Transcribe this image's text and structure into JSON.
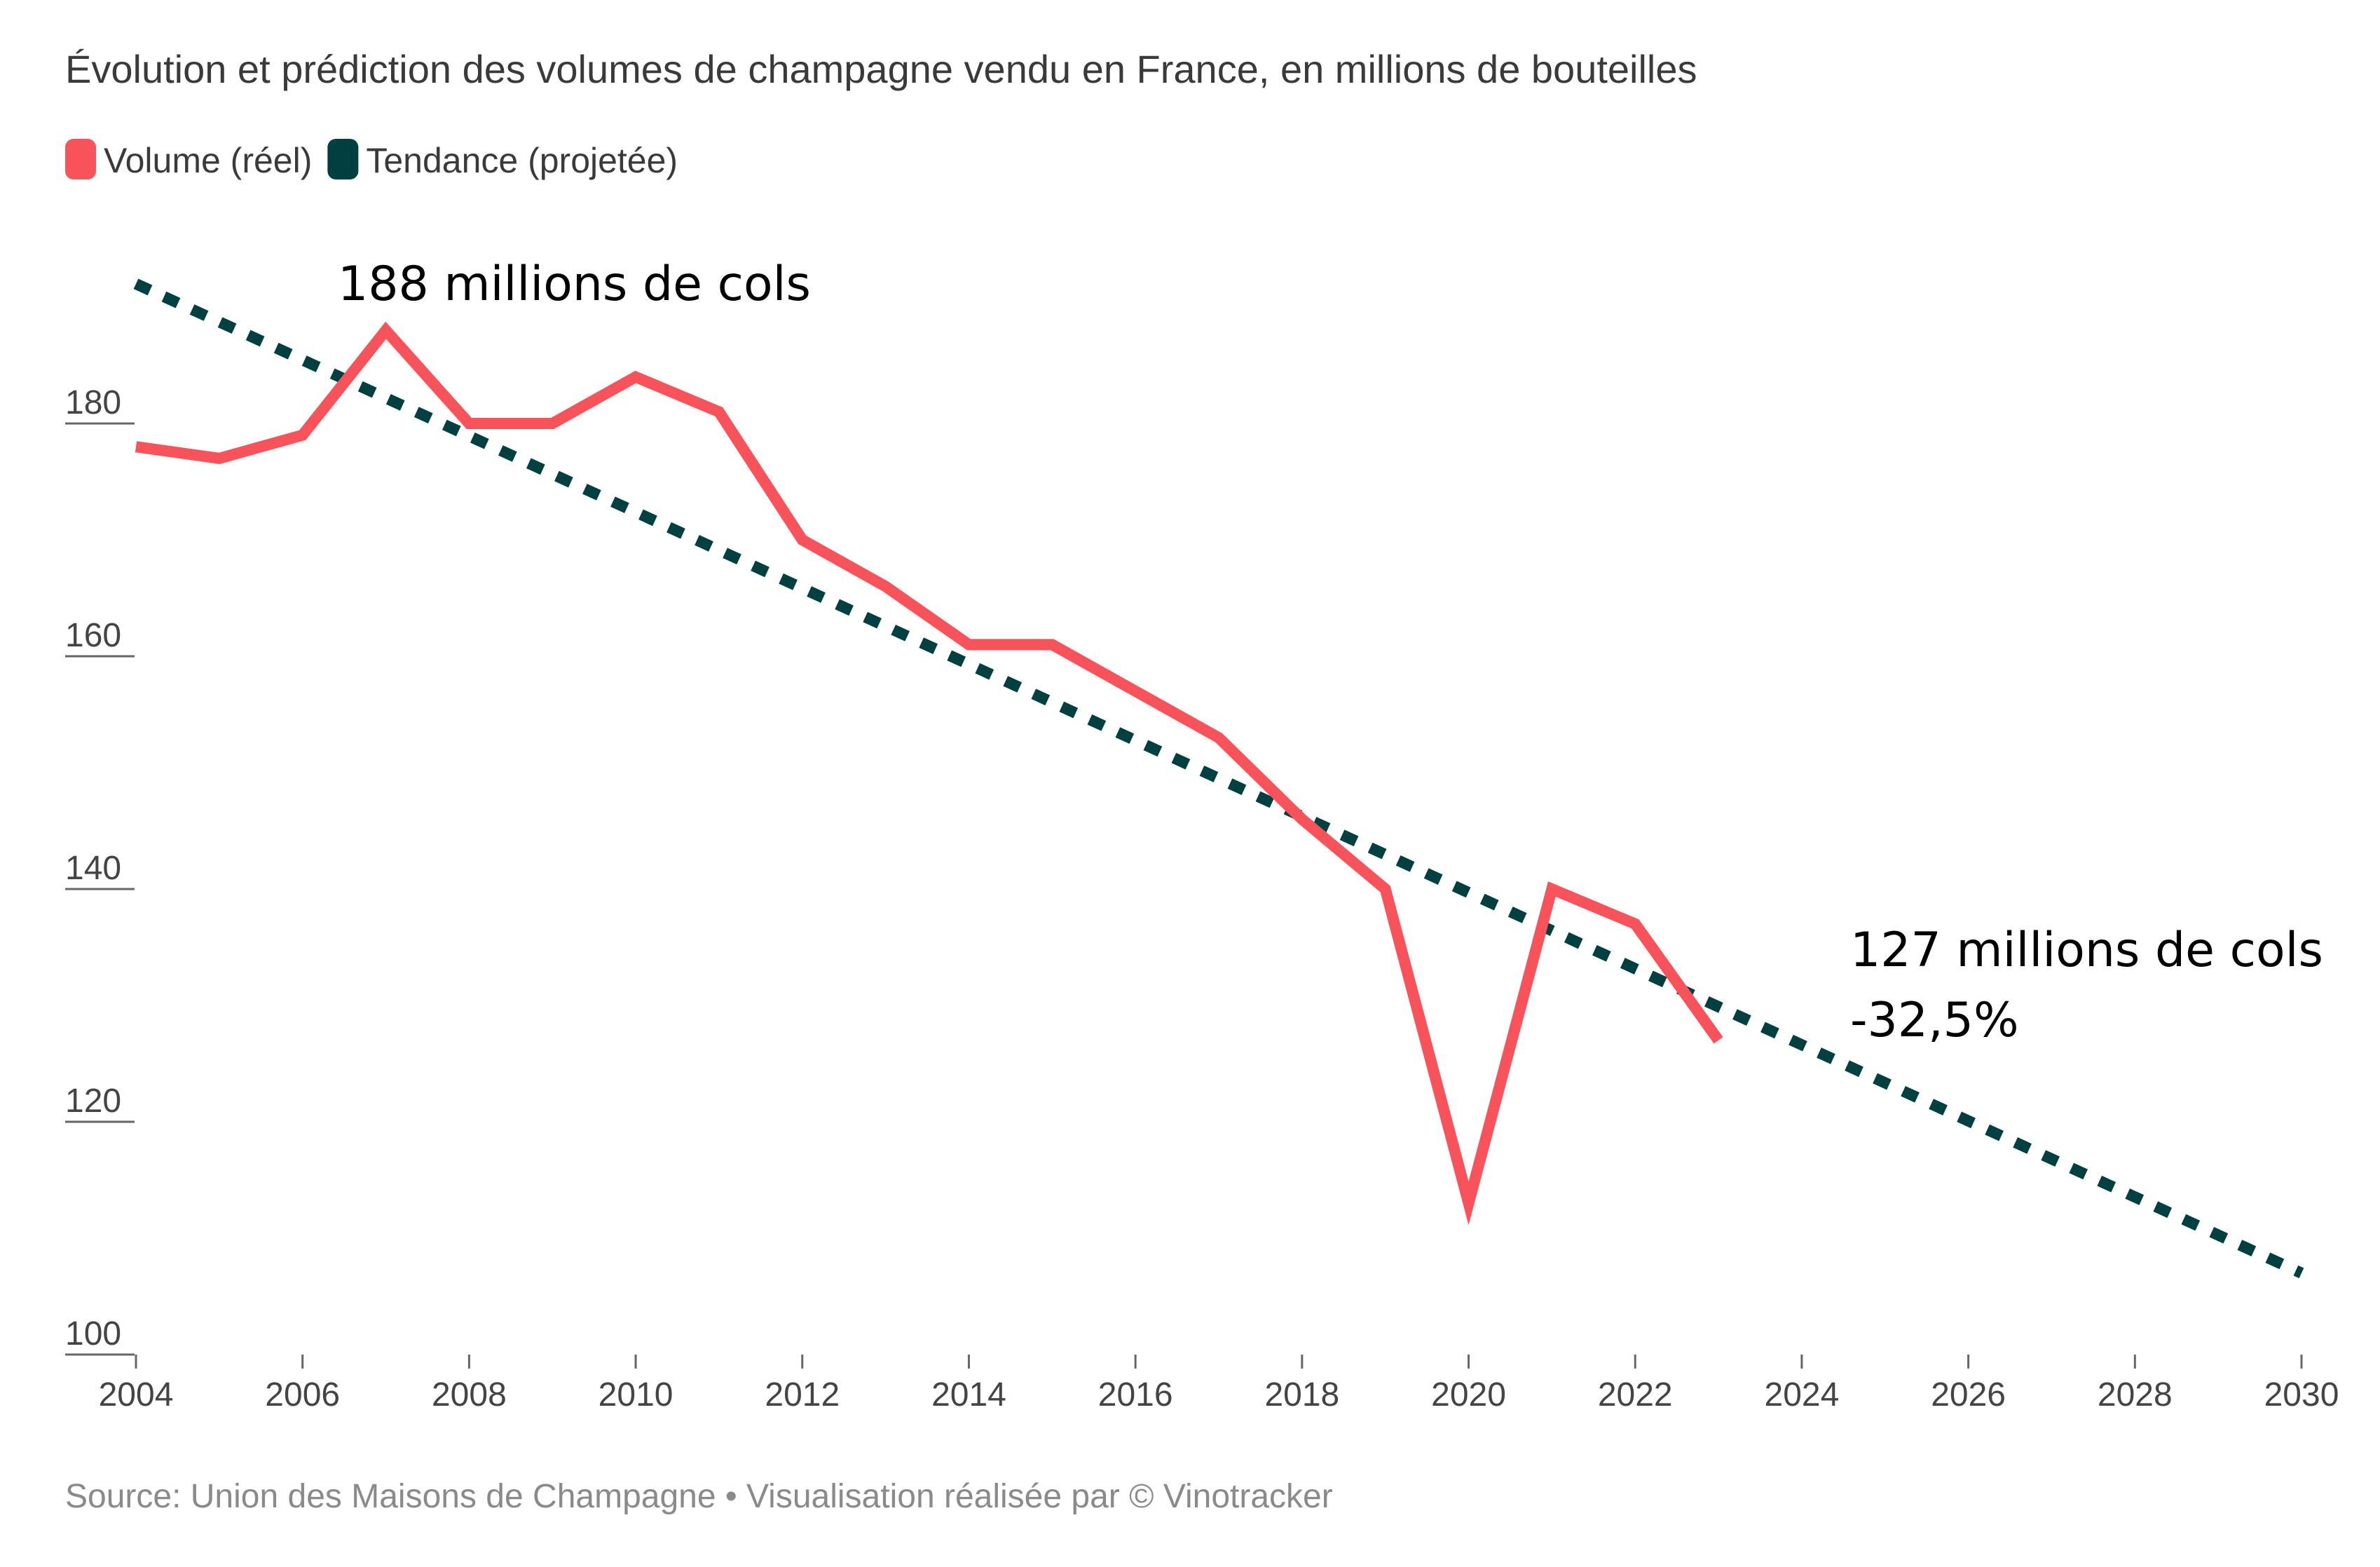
{
  "chart_data": {
    "type": "line",
    "title": "Évolution et prédiction des volumes de champagne vendu en France, en millions de bouteilles",
    "source": "Source: Union des Maisons de Champagne • Visualisation réalisée par © Vinotracker",
    "legend": {
      "placement": "top-left",
      "items": [
        {
          "label": "Volume (réel)",
          "color": "#f8525a"
        },
        {
          "label": "Tendance (projetée)",
          "color": "#004040"
        }
      ]
    },
    "xlim": [
      2004,
      2030
    ],
    "ylim": [
      100,
      195
    ],
    "x_ticks": [
      2004,
      2006,
      2008,
      2010,
      2012,
      2014,
      2016,
      2018,
      2020,
      2022,
      2024,
      2026,
      2028,
      2030
    ],
    "y_ticks": [
      100,
      120,
      140,
      160,
      180
    ],
    "grid": false,
    "series": [
      {
        "name": "Volume (réel)",
        "color": "#f8525a",
        "style": "solid",
        "points": [
          [
            2004,
            178
          ],
          [
            2005,
            177
          ],
          [
            2006,
            179
          ],
          [
            2007,
            188
          ],
          [
            2008,
            180
          ],
          [
            2009,
            180
          ],
          [
            2010,
            184
          ],
          [
            2011,
            181
          ],
          [
            2012,
            170
          ],
          [
            2013,
            166
          ],
          [
            2014,
            161
          ],
          [
            2015,
            161
          ],
          [
            2016,
            157
          ],
          [
            2017,
            153
          ],
          [
            2018,
            146
          ],
          [
            2019,
            140
          ],
          [
            2020,
            113
          ],
          [
            2021,
            140
          ],
          [
            2022,
            137
          ],
          [
            2023,
            127
          ]
        ]
      },
      {
        "name": "Tendance (projetée)",
        "color": "#004040",
        "style": "dotted",
        "points": [
          [
            2004,
            192
          ],
          [
            2030,
            107
          ]
        ]
      }
    ],
    "annotations": [
      {
        "text": "188 millions de cols",
        "x": 2007
      },
      {
        "lines": [
          "127 millions de cols",
          "-32,5%"
        ],
        "x": 2024.5
      }
    ]
  }
}
